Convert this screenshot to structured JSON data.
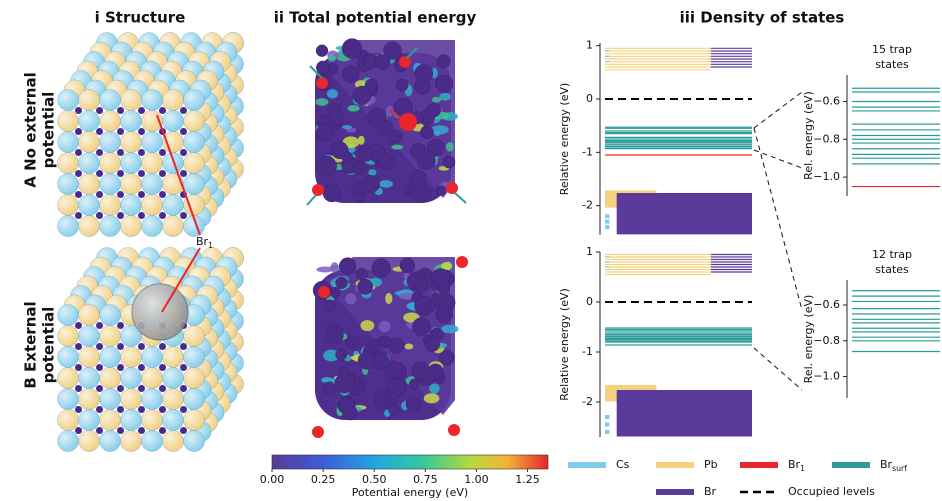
{
  "column_titles": [
    "i Structure",
    "ii Total potential energy",
    "iii Density of states"
  ],
  "row_labels": [
    [
      "A No external",
      "potential"
    ],
    [
      "B External",
      "potential"
    ]
  ],
  "annotation": {
    "label": "Br",
    "sub": "1"
  },
  "colorbar": {
    "label": "Potential energy (eV)",
    "lim": [
      0,
      1.35
    ],
    "ticks": [
      {
        "value": 0,
        "label": "0.00"
      },
      {
        "value": 0.25,
        "label": "0.25"
      },
      {
        "value": 0.5,
        "label": "0.50"
      },
      {
        "value": 0.75,
        "label": "0.75"
      },
      {
        "value": 1,
        "label": "1.00"
      },
      {
        "value": 1.25,
        "label": "1.25"
      }
    ]
  },
  "legend": [
    {
      "label": "Cs",
      "color": "#7ecbea"
    },
    {
      "label": "Pb",
      "color": "#f7d17e"
    },
    {
      "label": "Br",
      "sub": "1",
      "color": "#e8262b"
    },
    {
      "label": "Br",
      "sub": "surf",
      "color": "#2a9d9a"
    },
    {
      "label": "Br",
      "color": "#5b3a9b"
    },
    {
      "label": "Occupied levels",
      "color": "#000000",
      "style": "dashed"
    }
  ],
  "chart_data": [
    {
      "type": "levels",
      "ylabel": "Relative energy (eV)",
      "ylim": [
        -2.55,
        1.05
      ],
      "yticks": [
        -2,
        -1,
        0,
        1
      ],
      "series": [
        {
          "color": "#f7d17e",
          "values": [
            0.95,
            0.9,
            0.85,
            0.8,
            0.75,
            0.7,
            0.65,
            0.6,
            0.55,
            -1.75,
            -1.8,
            -1.85,
            -1.9,
            -1.95,
            -2.0
          ]
        },
        {
          "color": "#5b3a9b",
          "values": [
            0.95,
            0.9,
            0.85,
            0.8,
            0.75,
            0.7,
            0.65,
            0.6,
            -1.8,
            -1.85,
            -1.9,
            -1.95,
            -2.0,
            -2.05,
            -2.1,
            -2.15,
            -2.2,
            -2.25,
            -2.3,
            -2.35,
            -2.4,
            -2.45,
            -2.5
          ]
        },
        {
          "color": "#7ecbea",
          "values": [
            0.9,
            0.8,
            0.7,
            -2.2,
            -2.3,
            -2.4
          ]
        },
        {
          "color": "#2a9d9a",
          "values": [
            -0.53,
            -0.55,
            -0.6,
            -0.63,
            -0.65,
            -0.72,
            -0.75,
            -0.78,
            -0.8,
            -0.82,
            -0.85,
            -0.88,
            -0.9,
            -0.93
          ]
        },
        {
          "color": "#e8262b",
          "values": [
            -1.05
          ]
        },
        {
          "color": "#000000",
          "style": "dashed",
          "values": [
            0
          ]
        }
      ]
    },
    {
      "type": "levels",
      "title": [
        "15 trap",
        "states"
      ],
      "ylabel": "Rel. energy (eV)",
      "ylim": [
        -1.1,
        -0.46
      ],
      "yticks": [
        {
          "value": -0.6,
          "label": "−0.6"
        },
        {
          "value": -0.8,
          "label": "−0.8"
        },
        {
          "value": -1.0,
          "label": "−1.0"
        }
      ],
      "series": [
        {
          "color": "#2a9d9a",
          "values": [
            -0.53,
            -0.55,
            -0.6,
            -0.63,
            -0.65,
            -0.72,
            -0.75,
            -0.78,
            -0.8,
            -0.82,
            -0.85,
            -0.88,
            -0.9,
            -0.93
          ]
        },
        {
          "color": "#e8262b",
          "values": [
            -1.05
          ]
        }
      ]
    },
    {
      "type": "levels",
      "ylabel": "Relative energy (eV)",
      "ylim": [
        -2.7,
        1.0
      ],
      "yticks": [
        -2,
        -1,
        0,
        1
      ],
      "series": [
        {
          "color": "#f7d17e",
          "values": [
            0.95,
            0.9,
            0.85,
            0.8,
            0.75,
            0.7,
            0.65,
            0.6,
            0.55,
            -1.7,
            -1.75,
            -1.8,
            -1.85,
            -1.9,
            -1.95
          ]
        },
        {
          "color": "#5b3a9b",
          "values": [
            0.95,
            0.9,
            0.85,
            0.8,
            0.75,
            0.7,
            0.65,
            0.6,
            -1.8,
            -1.85,
            -1.9,
            -1.95,
            -2.0,
            -2.05,
            -2.1,
            -2.15,
            -2.2,
            -2.25,
            -2.3,
            -2.35,
            -2.4,
            -2.45,
            -2.5,
            -2.55,
            -2.6,
            -2.65
          ]
        },
        {
          "color": "#7ecbea",
          "values": [
            0.9,
            0.8,
            0.7,
            -2.3,
            -2.45,
            -2.6
          ]
        },
        {
          "color": "#2a9d9a",
          "values": [
            -0.52,
            -0.55,
            -0.58,
            -0.62,
            -0.65,
            -0.68,
            -0.7,
            -0.73,
            -0.75,
            -0.78,
            -0.8,
            -0.86
          ]
        },
        {
          "color": "#000000",
          "style": "dashed",
          "values": [
            0
          ]
        }
      ]
    },
    {
      "type": "levels",
      "title": [
        "12 trap",
        "states"
      ],
      "ylabel": "Rel. energy (eV)",
      "ylim": [
        -1.12,
        -0.46
      ],
      "yticks": [
        {
          "value": -0.6,
          "label": "−0.6"
        },
        {
          "value": -0.8,
          "label": "−0.8"
        },
        {
          "value": -1.0,
          "label": "−1.0"
        }
      ],
      "series": [
        {
          "color": "#2a9d9a",
          "values": [
            -0.52,
            -0.55,
            -0.58,
            -0.62,
            -0.65,
            -0.68,
            -0.7,
            -0.73,
            -0.75,
            -0.78,
            -0.8,
            -0.86
          ]
        }
      ]
    }
  ]
}
